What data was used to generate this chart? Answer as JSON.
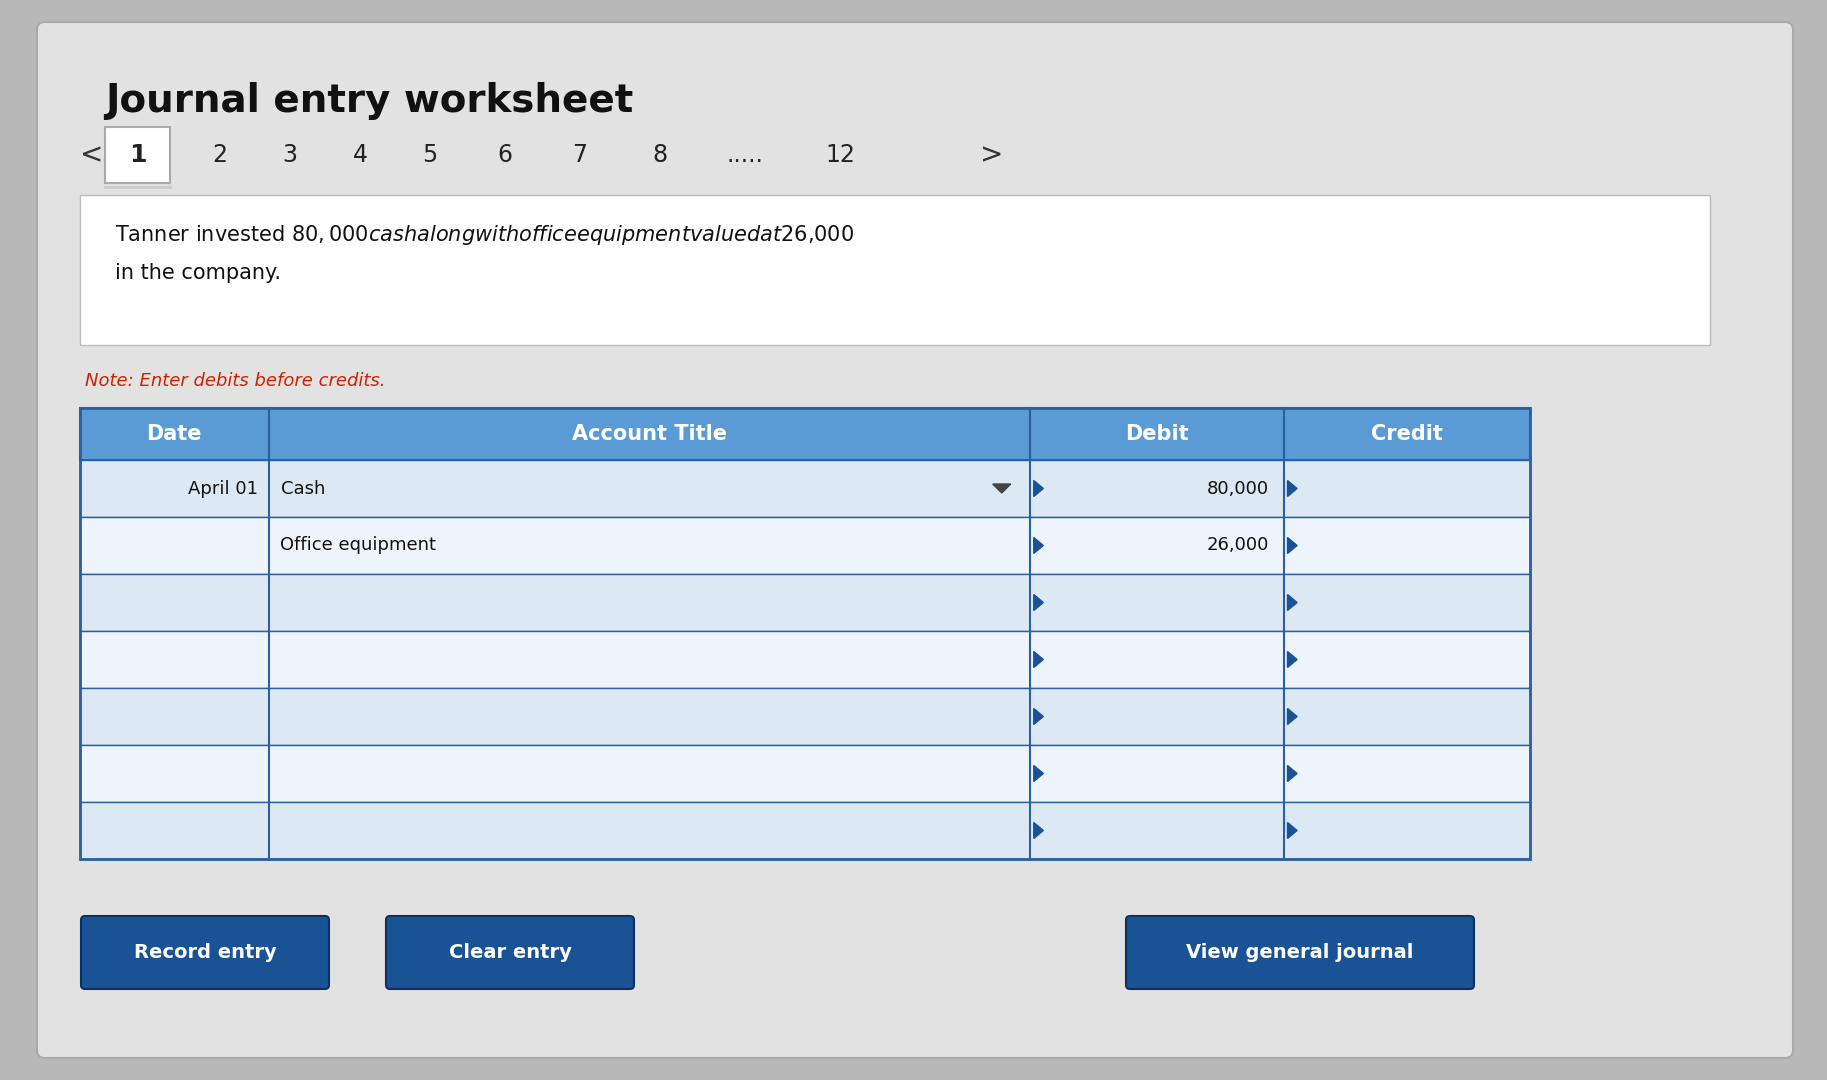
{
  "title": "Journal entry worksheet",
  "title_fontsize": 28,
  "background_color": "#b8b8b8",
  "card_color": "#e2e2e2",
  "nav_numbers": [
    "1",
    "2",
    "3",
    "4",
    "5",
    "6",
    "7",
    "8",
    ".....",
    "12"
  ],
  "description_line1": "Tanner invested $80,000 cash along with office equipment valued at $26,000",
  "description_line2": "in the company.",
  "note": "Note: Enter debits before credits.",
  "note_color": "#cc2200",
  "header_bg": "#5b9bd5",
  "header_text_color": "#ffffff",
  "col_headers": [
    "Date",
    "Account Title",
    "Debit",
    "Credit"
  ],
  "rows": [
    [
      "April 01",
      "Cash",
      "80,000",
      ""
    ],
    [
      "",
      "Office equipment",
      "26,000",
      ""
    ],
    [
      "",
      "",
      "",
      ""
    ],
    [
      "",
      "",
      "",
      ""
    ],
    [
      "",
      "",
      "",
      ""
    ],
    [
      "",
      "",
      "",
      ""
    ],
    [
      "",
      "",
      "",
      ""
    ]
  ],
  "button_bg": "#1a5296",
  "button_text_color": "#ffffff",
  "buttons": [
    "Record entry",
    "Clear entry",
    "View general journal"
  ],
  "table_border_color": "#2a5fa0",
  "row_light": "#dce9f5",
  "row_lighter": "#edf4fc"
}
